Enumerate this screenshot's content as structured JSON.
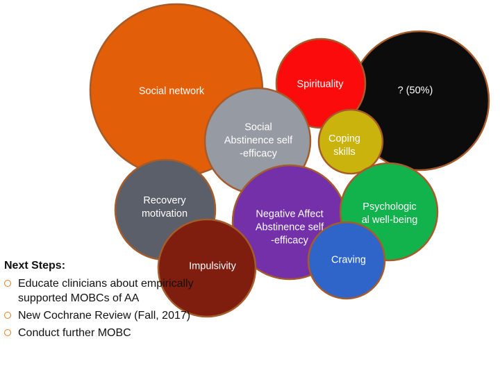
{
  "bubbles": [
    {
      "id": "unknown",
      "label": "? (50%)",
      "color": "#0c0c0c",
      "text_color": "#ffffff"
    },
    {
      "id": "social-network",
      "label": "Social network",
      "color": "#e35e09",
      "text_color": "#ffffff"
    },
    {
      "id": "spirituality",
      "label": "Spirituality",
      "color": "#fb0b0b",
      "text_color": "#ffffff"
    },
    {
      "id": "social-abstinence-self-efficacy",
      "label": "Social\nAbstinence self\n-efficacy",
      "color": "#969aa3",
      "text_color": "#ffffff"
    },
    {
      "id": "coping-skills",
      "label": "Coping\nskills",
      "color": "#c9b30c",
      "text_color": "#ffffff"
    },
    {
      "id": "recovery-motivation",
      "label": "Recovery\nmotivation",
      "color": "#5a5f6a",
      "text_color": "#ffffff"
    },
    {
      "id": "negative-affect-abstinence-self-efficacy",
      "label": "Negative Affect\nAbstinence self\n-efficacy",
      "color": "#7330a8",
      "text_color": "#ffffff"
    },
    {
      "id": "psychological-well-being",
      "label": "Psychologic\nal well-being",
      "color": "#12b24c",
      "text_color": "#ffffff"
    },
    {
      "id": "impulsivity",
      "label": "Impulsivity",
      "color": "#7f1d0f",
      "text_color": "#ffffff"
    },
    {
      "id": "craving",
      "label": "Craving",
      "color": "#2f64c8",
      "text_color": "#ffffff"
    }
  ],
  "bubble_border_color": "#a65b2a",
  "bullet_color": "#e87a1c",
  "next_steps": {
    "heading": "Next Steps:",
    "items": [
      "Educate clinicians about empirically supported MOBCs of AA",
      "New Cochrane Review (Fall, 2017)",
      "Conduct further MOBC"
    ]
  }
}
